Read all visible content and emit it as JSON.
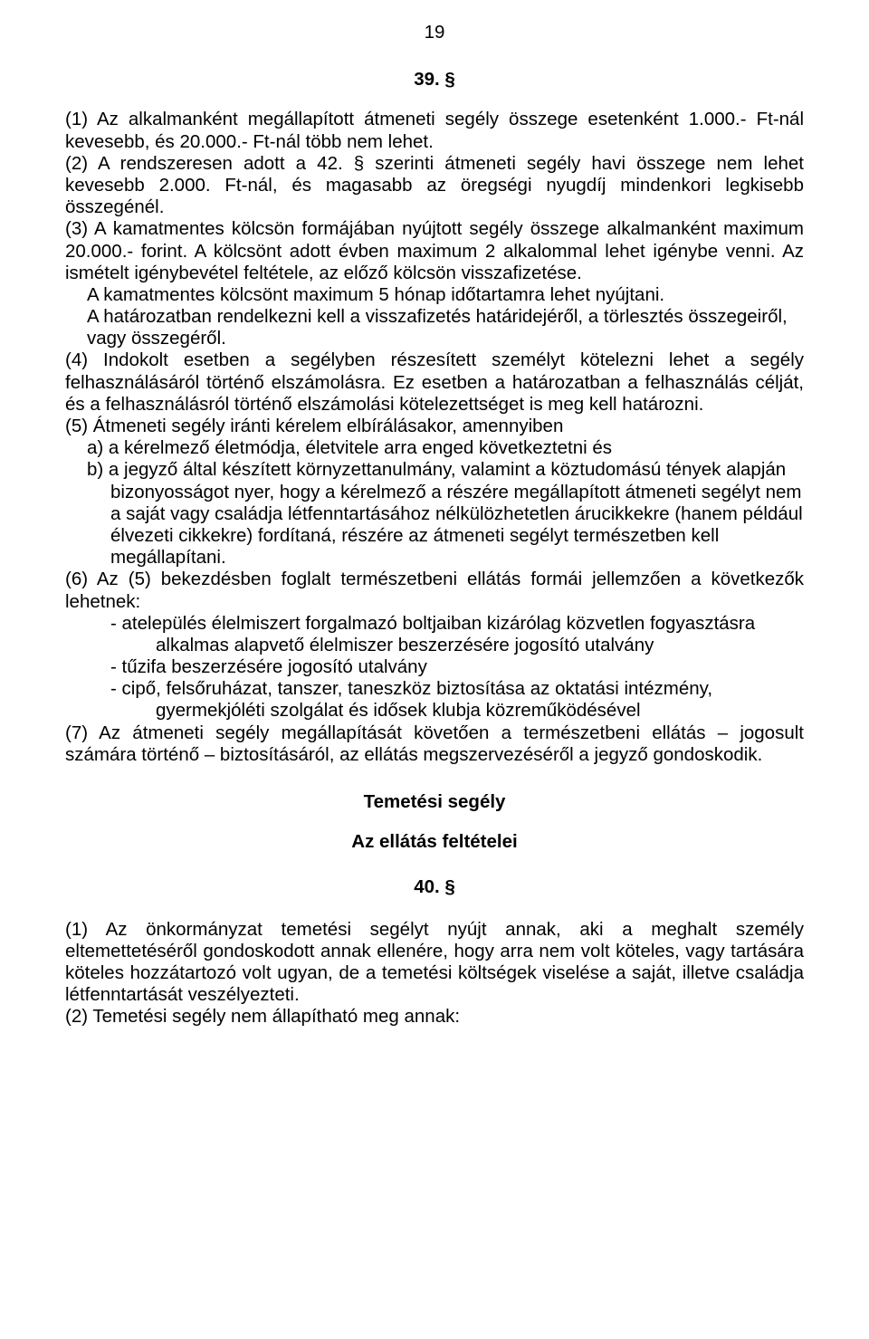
{
  "pageNumber": "19",
  "section39": "39. §",
  "p1": "(1) Az alkalmanként megállapított átmeneti segély összege esetenként 1.000.- Ft-nál kevesebb, és 20.000.- Ft-nál több nem lehet.",
  "p2": "(2) A rendszeresen adott a 42. § szerinti átmeneti segély havi összege nem lehet kevesebb 2.000. Ft-nál, és magasabb az öregségi nyugdíj mindenkori legkisebb összegénél.",
  "p3": "(3) A kamatmentes kölcsön formájában nyújtott segély összege alkalmanként maximum 20.000.- forint. A kölcsönt adott évben maximum 2 alkalommal lehet igénybe venni. Az ismételt igénybevétel feltétele, az előző kölcsön visszafizetése.",
  "p3a": "A kamatmentes kölcsönt maximum 5 hónap időtartamra lehet nyújtani.",
  "p3b": "A határozatban rendelkezni kell a visszafizetés határidejéről, a törlesztés összegeiről,",
  "p3c": "vagy összegéről.",
  "p4": "(4) Indokolt esetben a segélyben részesített személyt kötelezni lehet a segély felhasználásáról történő elszámolásra. Ez esetben a határozatban a felhasználás célját, és a felhasználásról történő elszámolási kötelezettséget is meg kell határozni.",
  "p5": "(5) Átmeneti segély iránti kérelem elbírálásakor, amennyiben",
  "p5a": "a) a kérelmező életmódja, életvitele arra enged következtetni és",
  "p5b": "b) a jegyző által készített környzettanulmány, valamint a köztudomású tények alapján",
  "p5bi": "bizonyosságot nyer, hogy a kérelmező a részére megállapított átmeneti segélyt nem",
  "p5bii": "a saját vagy családja létfenntartásához nélkülözhetetlen árucikkekre (hanem például",
  "p5biii": "élvezeti cikkekre) fordítaná, részére az átmeneti segélyt természetben kell megállapítani.",
  "p6": "(6) Az (5) bekezdésben foglalt természetbeni ellátás formái jellemzően a következők lehetnek:",
  "p6a": "- atelepülés élelmiszert forgalmazó boltjaiban kizárólag közvetlen fogyasztásra",
  "p6a2": "alkalmas alapvető élelmiszer beszerzésére jogosító utalvány",
  "p6b": "-  tűzifa beszerzésére jogosító utalvány",
  "p6c": "- cipő, felsőruházat, tanszer, taneszköz biztosítása az oktatási intézmény,",
  "p6c2": "gyermekjóléti szolgálat és idősek klubja közreműködésével",
  "p7": "(7) Az átmeneti segély megállapítását követően a természetbeni ellátás – jogosult számára történő – biztosításáról, az ellátás megszervezéséről a jegyző gondoskodik.",
  "headingTemetesi": "Temetési segély",
  "headingFeltetelei": "Az ellátás feltételei",
  "section40": "40. §",
  "p40_1": "(1) Az önkormányzat temetési segélyt nyújt annak, aki a meghalt személy eltemettetéséről gondoskodott annak ellenére, hogy arra nem volt köteles, vagy tartására köteles hozzátartozó volt ugyan, de a temetési költségek viselése a saját, illetve családja létfenntartását veszélyezteti.",
  "p40_2": "(2) Temetési segély nem állapítható meg annak:"
}
